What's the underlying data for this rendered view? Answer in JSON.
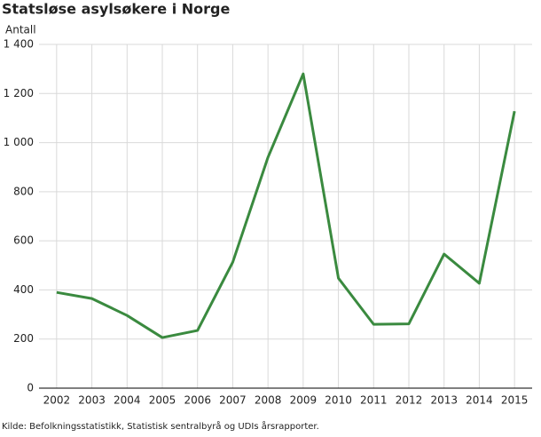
{
  "chart_data": {
    "type": "line",
    "title": "Statsløse asylsøkere i Norge",
    "y_label": "Antall",
    "source": "Kilde: Befolkningsstatistikk, Statistisk sentralbyrå og UDIs årsrapporter.",
    "categories": [
      "2002",
      "2003",
      "2004",
      "2005",
      "2006",
      "2007",
      "2008",
      "2009",
      "2010",
      "2011",
      "2012",
      "2013",
      "2014",
      "2015"
    ],
    "series": [
      {
        "name": "Statsløse asylsøkere",
        "color": "#3a8a3f",
        "values": [
          390,
          365,
          296,
          206,
          235,
          513,
          940,
          1280,
          448,
          260,
          262,
          546,
          427,
          1128
        ]
      }
    ],
    "ylim": [
      0,
      1400
    ],
    "yticks": [
      0,
      200,
      400,
      600,
      800,
      {
        "value": 1000,
        "label": "1 000"
      },
      {
        "value": 1200,
        "label": "1 200"
      },
      {
        "value": 1400,
        "label": "1 400"
      }
    ],
    "grid": true
  }
}
